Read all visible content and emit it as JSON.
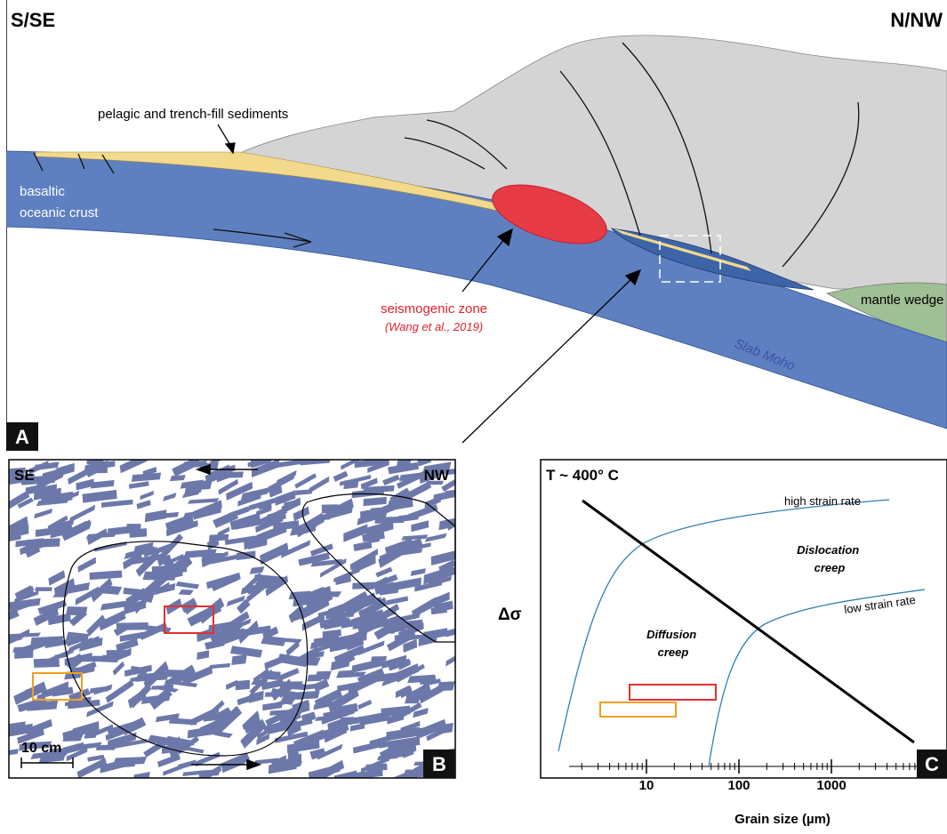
{
  "panel_a": {
    "label": "A",
    "left_direction": "S/SE",
    "right_direction": "N/NW",
    "sediments_label": "pelagic and trench-fill sediments",
    "crust_label": [
      "basaltic",
      "oceanic crust"
    ],
    "seismogenic_label": "seismogenic zone",
    "seismogenic_source": "(Wang et al., 2019)",
    "mantle_label": "mantle wedge",
    "moho_label": "Slab Moho"
  },
  "panel_b": {
    "label": "B",
    "left_direction": "SE",
    "right_direction": "NW",
    "scale_label": "10 cm"
  },
  "panel_c": {
    "label": "C",
    "title": "T ~ 400° C",
    "y_label": "Δσ",
    "x_label": "Grain size (µm)",
    "x_ticks": [
      10,
      100,
      1000
    ],
    "curves": {
      "high": "high strain rate",
      "low": "low strain rate"
    },
    "regions": {
      "dislocation": [
        "Dislocation",
        "creep"
      ],
      "diffusion": [
        "Diffusion",
        "creep"
      ]
    }
  }
}
